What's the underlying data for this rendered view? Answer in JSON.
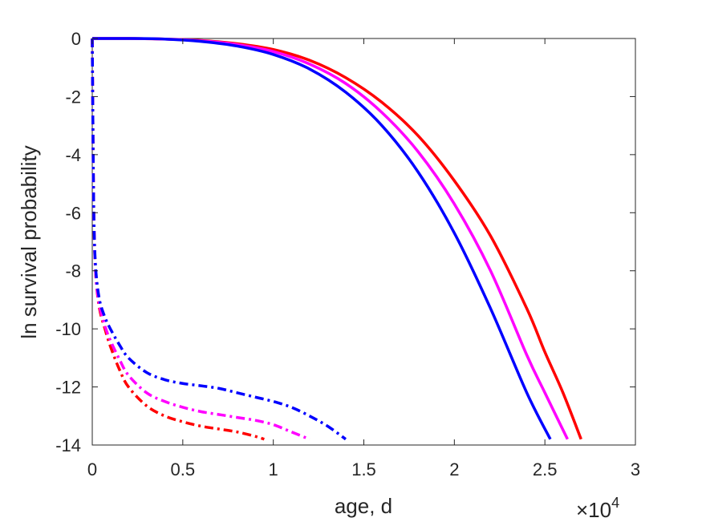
{
  "chart_data": {
    "type": "line",
    "title": "",
    "xlabel": "age, d",
    "ylabel": "ln survival probability",
    "x_multiplier": {
      "base": "×10",
      "exponent": "4"
    },
    "xlim": [
      0,
      30000
    ],
    "ylim": [
      -14,
      0
    ],
    "x_ticks": [
      0,
      5000,
      10000,
      15000,
      20000,
      25000,
      30000
    ],
    "x_tick_labels": [
      "0",
      "0.5",
      "1",
      "1.5",
      "2",
      "2.5",
      "3"
    ],
    "y_ticks": [
      0,
      -2,
      -4,
      -6,
      -8,
      -10,
      -12,
      -14
    ],
    "y_tick_labels": [
      "0",
      "-2",
      "-4",
      "-6",
      "-8",
      "-10",
      "-12",
      "-14"
    ],
    "grid": false,
    "series": [
      {
        "color": "#ff0000",
        "style": "solid",
        "x": [
          0,
          2000,
          4000,
          6000,
          8000,
          10000,
          12000,
          14000,
          16000,
          18000,
          20000,
          22000,
          24000,
          25000,
          26000,
          27000
        ],
        "y": [
          0,
          0,
          -0.02,
          -0.07,
          -0.18,
          -0.38,
          -0.75,
          -1.35,
          -2.2,
          -3.35,
          -4.9,
          -6.8,
          -9.3,
          -10.8,
          -12.2,
          -13.8
        ]
      },
      {
        "color": "#ff00ff",
        "style": "solid",
        "x": [
          0,
          2000,
          4000,
          6000,
          8000,
          10000,
          12000,
          14000,
          16000,
          18000,
          20000,
          22000,
          24000,
          25000,
          26250
        ],
        "y": [
          0,
          0,
          -0.02,
          -0.08,
          -0.21,
          -0.45,
          -0.88,
          -1.55,
          -2.55,
          -3.9,
          -5.7,
          -8.0,
          -10.9,
          -12.2,
          -13.8
        ]
      },
      {
        "color": "#0000ff",
        "style": "solid",
        "x": [
          0,
          2000,
          4000,
          6000,
          8000,
          10000,
          12000,
          14000,
          16000,
          18000,
          20000,
          22000,
          24000,
          25300
        ],
        "y": [
          0,
          0,
          -0.02,
          -0.1,
          -0.26,
          -0.55,
          -1.05,
          -1.85,
          -3.0,
          -4.6,
          -6.7,
          -9.3,
          -12.2,
          -13.8
        ]
      },
      {
        "color": "#ff0000",
        "style": "dashdot",
        "x": [
          0,
          50,
          100,
          200,
          400,
          700,
          1000,
          1500,
          2000,
          3000,
          4000,
          5000,
          6000,
          7000,
          8000,
          9000,
          9500
        ],
        "y": [
          0,
          -4,
          -6.5,
          -8.2,
          -9.3,
          -10.0,
          -10.6,
          -11.4,
          -12.0,
          -12.65,
          -13.0,
          -13.2,
          -13.35,
          -13.45,
          -13.55,
          -13.7,
          -13.8
        ]
      },
      {
        "color": "#ff00ff",
        "style": "dashdot",
        "x": [
          0,
          50,
          100,
          200,
          400,
          700,
          1000,
          1500,
          2000,
          3000,
          4000,
          5000,
          6000,
          7000,
          8000,
          9000,
          10000,
          11000,
          12000
        ],
        "y": [
          0,
          -4,
          -6.5,
          -8.2,
          -9.2,
          -9.9,
          -10.4,
          -11.05,
          -11.6,
          -12.2,
          -12.5,
          -12.7,
          -12.85,
          -12.95,
          -13.05,
          -13.15,
          -13.3,
          -13.55,
          -13.8
        ]
      },
      {
        "color": "#0000ff",
        "style": "dashdot",
        "x": [
          0,
          50,
          100,
          200,
          400,
          700,
          1000,
          1500,
          2000,
          3000,
          4000,
          5000,
          6000,
          7000,
          8000,
          9000,
          10000,
          11000,
          12000,
          13000,
          14000
        ],
        "y": [
          0,
          -4,
          -6.5,
          -8.0,
          -9.0,
          -9.6,
          -10.0,
          -10.55,
          -11.0,
          -11.5,
          -11.75,
          -11.88,
          -11.96,
          -12.05,
          -12.2,
          -12.35,
          -12.5,
          -12.7,
          -13.0,
          -13.35,
          -13.8
        ]
      }
    ]
  }
}
